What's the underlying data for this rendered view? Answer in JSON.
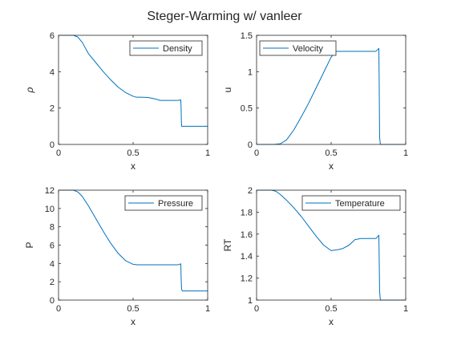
{
  "figure": {
    "title": "Steger-Warming w/ vanleer"
  },
  "colors": {
    "series": "#0072BD",
    "axis": "#262626",
    "background": "#ffffff"
  },
  "chart_data": [
    {
      "type": "line",
      "xlabel": "x",
      "ylabel": "ρ",
      "ylabel_style": "italic",
      "xlim": [
        0,
        1
      ],
      "ylim": [
        0,
        6
      ],
      "xticks": [
        0,
        0.5,
        1
      ],
      "xticklabels": [
        "0",
        "0.5",
        "1"
      ],
      "yticks": [
        0,
        2,
        4,
        6
      ],
      "yticklabels": [
        "0",
        "2",
        "4",
        "6"
      ],
      "grid": false,
      "legend": "top-right",
      "series": [
        {
          "name": "Density",
          "x": [
            0,
            0.1,
            0.13,
            0.16,
            0.2,
            0.25,
            0.3,
            0.35,
            0.4,
            0.45,
            0.5,
            0.52,
            0.55,
            0.6,
            0.65,
            0.68,
            0.7,
            0.75,
            0.8,
            0.82,
            0.822,
            0.824,
            0.826,
            0.83,
            0.9,
            1.0
          ],
          "y": [
            6.0,
            6.0,
            5.9,
            5.6,
            5.0,
            4.5,
            4.0,
            3.55,
            3.15,
            2.85,
            2.65,
            2.6,
            2.6,
            2.58,
            2.5,
            2.42,
            2.42,
            2.42,
            2.42,
            2.45,
            2.0,
            1.2,
            1.0,
            1.0,
            1.0,
            1.0
          ]
        }
      ]
    },
    {
      "type": "line",
      "xlabel": "x",
      "ylabel": "u",
      "xlim": [
        0,
        1
      ],
      "ylim": [
        0,
        1.5
      ],
      "xticks": [
        0,
        0.5,
        1
      ],
      "xticklabels": [
        "0",
        "0.5",
        "1"
      ],
      "yticks": [
        0,
        0.5,
        1,
        1.5
      ],
      "yticklabels": [
        "0",
        "0.5",
        "1",
        "1.5"
      ],
      "grid": false,
      "legend": "top-left",
      "series": [
        {
          "name": "Velocity",
          "x": [
            0,
            0.12,
            0.16,
            0.2,
            0.25,
            0.3,
            0.35,
            0.4,
            0.45,
            0.5,
            0.53,
            0.55,
            0.6,
            0.7,
            0.8,
            0.82,
            0.822,
            0.825,
            0.83,
            0.9,
            1.0
          ],
          "y": [
            0,
            0,
            0.01,
            0.06,
            0.2,
            0.38,
            0.57,
            0.78,
            0.99,
            1.2,
            1.28,
            1.28,
            1.28,
            1.28,
            1.28,
            1.32,
            0.9,
            0.1,
            0,
            0,
            0
          ]
        }
      ]
    },
    {
      "type": "line",
      "xlabel": "x",
      "ylabel": "P",
      "xlim": [
        0,
        1
      ],
      "ylim": [
        0,
        12
      ],
      "xticks": [
        0,
        0.5,
        1
      ],
      "xticklabels": [
        "0",
        "0.5",
        "1"
      ],
      "yticks": [
        0,
        2,
        4,
        6,
        8,
        10,
        12
      ],
      "yticklabels": [
        "0",
        "2",
        "4",
        "6",
        "8",
        "10",
        "12"
      ],
      "grid": false,
      "legend": "top-right",
      "series": [
        {
          "name": "Pressure",
          "x": [
            0,
            0.1,
            0.13,
            0.16,
            0.2,
            0.25,
            0.3,
            0.35,
            0.4,
            0.45,
            0.5,
            0.53,
            0.55,
            0.6,
            0.7,
            0.8,
            0.82,
            0.822,
            0.825,
            0.83,
            0.9,
            1.0
          ],
          "y": [
            12.0,
            12.0,
            11.8,
            11.3,
            10.3,
            8.9,
            7.5,
            6.2,
            5.1,
            4.3,
            3.9,
            3.85,
            3.85,
            3.85,
            3.85,
            3.85,
            3.95,
            2.5,
            1.2,
            1.0,
            1.0,
            1.0
          ]
        }
      ]
    },
    {
      "type": "line",
      "xlabel": "x",
      "ylabel": "RT",
      "xlim": [
        0,
        1
      ],
      "ylim": [
        1,
        2
      ],
      "xticks": [
        0,
        0.5,
        1
      ],
      "xticklabels": [
        "0",
        "0.5",
        "1"
      ],
      "yticks": [
        1,
        1.2,
        1.4,
        1.6,
        1.8,
        2
      ],
      "yticklabels": [
        "1",
        "1.2",
        "1.4",
        "1.6",
        "1.8",
        "2"
      ],
      "grid": false,
      "legend": "top-right",
      "series": [
        {
          "name": "Temperature",
          "x": [
            0,
            0.1,
            0.13,
            0.16,
            0.2,
            0.25,
            0.3,
            0.35,
            0.4,
            0.45,
            0.5,
            0.55,
            0.58,
            0.62,
            0.66,
            0.7,
            0.75,
            0.8,
            0.82,
            0.822,
            0.825,
            0.83,
            0.9,
            1.0
          ],
          "y": [
            2.0,
            2.0,
            1.99,
            1.96,
            1.91,
            1.84,
            1.76,
            1.67,
            1.58,
            1.5,
            1.45,
            1.46,
            1.47,
            1.5,
            1.55,
            1.56,
            1.56,
            1.56,
            1.59,
            1.4,
            1.08,
            1.0,
            1.0,
            1.0
          ]
        }
      ]
    }
  ]
}
